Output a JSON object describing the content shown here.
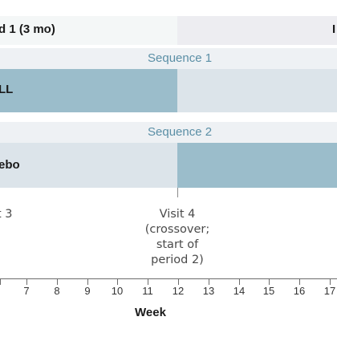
{
  "period1": {
    "label": "d 1 (3 mo)",
    "color": "#f4f7f7"
  },
  "period2": {
    "label": "I",
    "color": "#ededf1"
  },
  "sequence1": {
    "label": "Sequence 1",
    "bar1": {
      "label": "LL",
      "color": "#9bbdcb"
    },
    "bar2": {
      "color": "#dce4ea"
    }
  },
  "sequence2": {
    "label": "Sequence 2",
    "bar1": {
      "label": "ebo",
      "color": "#dce4ea"
    },
    "bar2": {
      "color": "#9bbdcb"
    }
  },
  "visit3": {
    "label": "t 3"
  },
  "visit4": {
    "label": "Visit 4\n(crossover;\nstart of\nperiod 2)"
  },
  "axis": {
    "title": "Week",
    "ticks": [
      "7",
      "8",
      "9",
      "10",
      "11",
      "12",
      "13",
      "14",
      "15",
      "16",
      "17"
    ]
  }
}
